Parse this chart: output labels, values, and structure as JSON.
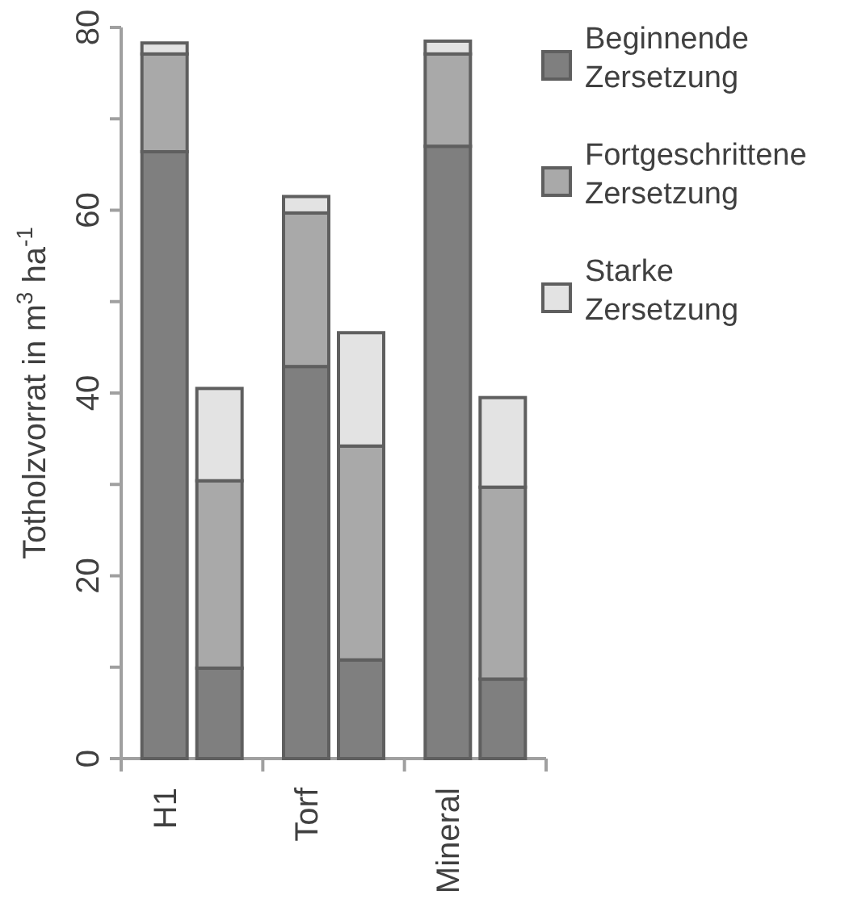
{
  "chart_data": {
    "type": "bar",
    "stacked": true,
    "ylabel": "Totholzvorrat in m$^{3}$ ha$^{-1}$",
    "categories": [
      "H1",
      null,
      "Torf",
      null,
      "Mineral",
      null
    ],
    "series": [
      {
        "name": "Beginnende Zersetzung",
        "color": "#7f7f7f",
        "values": [
          66.4,
          9.9,
          42.9,
          10.8,
          67.0,
          8.7
        ]
      },
      {
        "name": "Fortgeschrittene Zersetzung",
        "color": "#a9a9a9",
        "values": [
          10.7,
          20.5,
          16.8,
          23.4,
          10.1,
          21.0
        ]
      },
      {
        "name": "Starke Zersetzung",
        "color": "#e3e3e3",
        "values": [
          1.2,
          10.1,
          1.8,
          12.4,
          1.4,
          9.8
        ]
      }
    ],
    "ylim": [
      0,
      80
    ],
    "yticks": [
      0,
      {
        "value": 10,
        "label": null
      },
      20,
      {
        "value": 30,
        "label": null
      },
      40,
      {
        "value": 50,
        "label": null
      },
      60,
      {
        "value": 70,
        "label": null
      },
      80
    ],
    "legend": "right",
    "grid": false
  }
}
